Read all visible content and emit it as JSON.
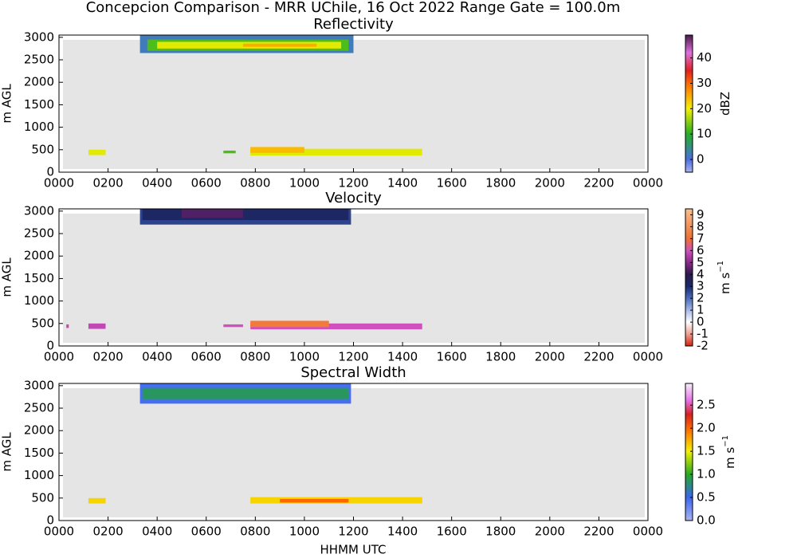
{
  "figure_title": "Concepcion Comparison - MRR UChile, 16 Oct 2022 Range Gate = 100.0m",
  "x_label": "HHMM UTC",
  "chart_data": [
    {
      "type": "heatmap",
      "title": "Reflectivity",
      "y_label": "m AGL",
      "xlim": [
        0,
        24
      ],
      "xticks": [
        {
          "value": 0,
          "label": "0000"
        },
        {
          "value": 2,
          "label": "0200"
        },
        {
          "value": 4,
          "label": "0400"
        },
        {
          "value": 6,
          "label": "0600"
        },
        {
          "value": 8,
          "label": "0800"
        },
        {
          "value": 10,
          "label": "1000"
        },
        {
          "value": 12,
          "label": "1200"
        },
        {
          "value": 14,
          "label": "1400"
        },
        {
          "value": 16,
          "label": "1600"
        },
        {
          "value": 18,
          "label": "1800"
        },
        {
          "value": 20,
          "label": "2000"
        },
        {
          "value": 22,
          "label": "2200"
        },
        {
          "value": 24,
          "label": "0000"
        }
      ],
      "ylim": [
        0,
        3050
      ],
      "yticks": [
        0,
        500,
        1000,
        1500,
        2000,
        2500,
        3000
      ],
      "clim": [
        -5,
        49
      ],
      "cticks": [
        0,
        10,
        20,
        30,
        40
      ],
      "colorbar_label": {
        "base": "dBZ"
      },
      "colormap": [
        {
          "v": -5,
          "c": "#a9b4f0"
        },
        {
          "v": 0,
          "c": "#4a6ee0"
        },
        {
          "v": 10,
          "c": "#22b022"
        },
        {
          "v": 20,
          "c": "#f5f000"
        },
        {
          "v": 30,
          "c": "#ff6a00"
        },
        {
          "v": 35,
          "c": "#e02020"
        },
        {
          "v": 42,
          "c": "#e070e0"
        },
        {
          "v": 49,
          "c": "#4a1a4a"
        }
      ],
      "regions": [
        {
          "x": [
            3.3,
            12.0
          ],
          "y": [
            2650,
            3050
          ],
          "value": 2
        },
        {
          "x": [
            3.6,
            11.8
          ],
          "y": [
            2700,
            2950
          ],
          "value": 12
        },
        {
          "x": [
            4.0,
            11.5
          ],
          "y": [
            2750,
            2900
          ],
          "value": 19
        },
        {
          "x": [
            7.5,
            10.5
          ],
          "y": [
            2790,
            2860
          ],
          "value": 25
        },
        {
          "x": [
            1.2,
            1.9
          ],
          "y": [
            380,
            500
          ],
          "value": 19
        },
        {
          "x": [
            6.7,
            7.2
          ],
          "y": [
            420,
            480
          ],
          "value": 12
        },
        {
          "x": [
            7.8,
            14.8
          ],
          "y": [
            370,
            520
          ],
          "value": 19
        },
        {
          "x": [
            7.8,
            10.0
          ],
          "y": [
            430,
            560
          ],
          "value": 24
        }
      ]
    },
    {
      "type": "heatmap",
      "title": "Velocity",
      "y_label": "m AGL",
      "xlim": [
        0,
        24
      ],
      "xticks": [
        {
          "value": 0,
          "label": "0000"
        },
        {
          "value": 2,
          "label": "0200"
        },
        {
          "value": 4,
          "label": "0400"
        },
        {
          "value": 6,
          "label": "0600"
        },
        {
          "value": 8,
          "label": "0800"
        },
        {
          "value": 10,
          "label": "1000"
        },
        {
          "value": 12,
          "label": "1200"
        },
        {
          "value": 14,
          "label": "1400"
        },
        {
          "value": 16,
          "label": "1600"
        },
        {
          "value": 18,
          "label": "1800"
        },
        {
          "value": 20,
          "label": "2000"
        },
        {
          "value": 22,
          "label": "2200"
        },
        {
          "value": 24,
          "label": "0000"
        }
      ],
      "ylim": [
        0,
        3050
      ],
      "yticks": [
        0,
        500,
        1000,
        1500,
        2000,
        2500,
        3000
      ],
      "clim": [
        -2,
        9.5
      ],
      "cticks": [
        -2,
        -1,
        0,
        1,
        2,
        3,
        4,
        5,
        6,
        7,
        8,
        9
      ],
      "colorbar_label": {
        "base": "m s",
        "sup": "−1"
      },
      "colormap": [
        {
          "v": -2,
          "c": "#d82010"
        },
        {
          "v": -1,
          "c": "#f0a090"
        },
        {
          "v": 0,
          "c": "#ffffff"
        },
        {
          "v": 1,
          "c": "#a8b8e8"
        },
        {
          "v": 2,
          "c": "#4a6cc0"
        },
        {
          "v": 3,
          "c": "#1a2a6a"
        },
        {
          "v": 4,
          "c": "#2a1a4a"
        },
        {
          "v": 5,
          "c": "#8a2a8a"
        },
        {
          "v": 6,
          "c": "#d050c0"
        },
        {
          "v": 7,
          "c": "#f07030"
        },
        {
          "v": 9.5,
          "c": "#f8c090"
        }
      ],
      "regions": [
        {
          "x": [
            3.3,
            11.9
          ],
          "y": [
            2700,
            3050
          ],
          "value": 2.6
        },
        {
          "x": [
            3.4,
            11.8
          ],
          "y": [
            2800,
            3050
          ],
          "value": 3.2
        },
        {
          "x": [
            5.0,
            7.5
          ],
          "y": [
            2850,
            3050
          ],
          "value": 4.4
        },
        {
          "x": [
            0.3,
            0.4
          ],
          "y": [
            400,
            480
          ],
          "value": 5.8
        },
        {
          "x": [
            1.2,
            1.9
          ],
          "y": [
            380,
            500
          ],
          "value": 5.8
        },
        {
          "x": [
            6.7,
            7.5
          ],
          "y": [
            420,
            480
          ],
          "value": 6
        },
        {
          "x": [
            7.8,
            14.8
          ],
          "y": [
            370,
            500
          ],
          "value": 6
        },
        {
          "x": [
            7.8,
            11.0
          ],
          "y": [
            420,
            560
          ],
          "value": 7.3
        }
      ]
    },
    {
      "type": "heatmap",
      "title": "Spectral Width",
      "y_label": "m AGL",
      "xlim": [
        0,
        24
      ],
      "xticks": [
        {
          "value": 0,
          "label": "0000"
        },
        {
          "value": 2,
          "label": "0200"
        },
        {
          "value": 4,
          "label": "0400"
        },
        {
          "value": 6,
          "label": "0600"
        },
        {
          "value": 8,
          "label": "0800"
        },
        {
          "value": 10,
          "label": "1000"
        },
        {
          "value": 12,
          "label": "1200"
        },
        {
          "value": 14,
          "label": "1400"
        },
        {
          "value": 16,
          "label": "1600"
        },
        {
          "value": 18,
          "label": "1800"
        },
        {
          "value": 20,
          "label": "2000"
        },
        {
          "value": 22,
          "label": "2200"
        },
        {
          "value": 24,
          "label": "0000"
        }
      ],
      "ylim": [
        0,
        3050
      ],
      "yticks": [
        0,
        500,
        1000,
        1500,
        2000,
        2500,
        3000
      ],
      "clim": [
        0,
        2.97
      ],
      "cticks": [
        {
          "value": 0,
          "label": "0.0"
        },
        0.5,
        {
          "value": 1,
          "label": "1.0"
        },
        1.5,
        {
          "value": 2,
          "label": "2.0"
        },
        2.5
      ],
      "colorbar_label": {
        "base": "m s",
        "sup": "−1"
      },
      "colormap": [
        {
          "v": 0,
          "c": "#a9b4f0"
        },
        {
          "v": 0.5,
          "c": "#3a66f0"
        },
        {
          "v": 1,
          "c": "#22aa22"
        },
        {
          "v": 1.5,
          "c": "#f5f000"
        },
        {
          "v": 2,
          "c": "#ff6600"
        },
        {
          "v": 2.3,
          "c": "#d82020"
        },
        {
          "v": 2.6,
          "c": "#e870e8"
        },
        {
          "v": 2.97,
          "c": "#f8f0f8"
        }
      ],
      "regions": [
        {
          "x": [
            3.3,
            11.9
          ],
          "y": [
            2600,
            3050
          ],
          "value": 0.45
        },
        {
          "x": [
            3.4,
            11.8
          ],
          "y": [
            2700,
            2950
          ],
          "value": 0.85
        },
        {
          "x": [
            1.2,
            1.9
          ],
          "y": [
            380,
            500
          ],
          "value": 1.6
        },
        {
          "x": [
            7.8,
            14.8
          ],
          "y": [
            380,
            520
          ],
          "value": 1.6
        },
        {
          "x": [
            9.0,
            11.8
          ],
          "y": [
            400,
            480
          ],
          "value": 2.0
        }
      ]
    }
  ]
}
